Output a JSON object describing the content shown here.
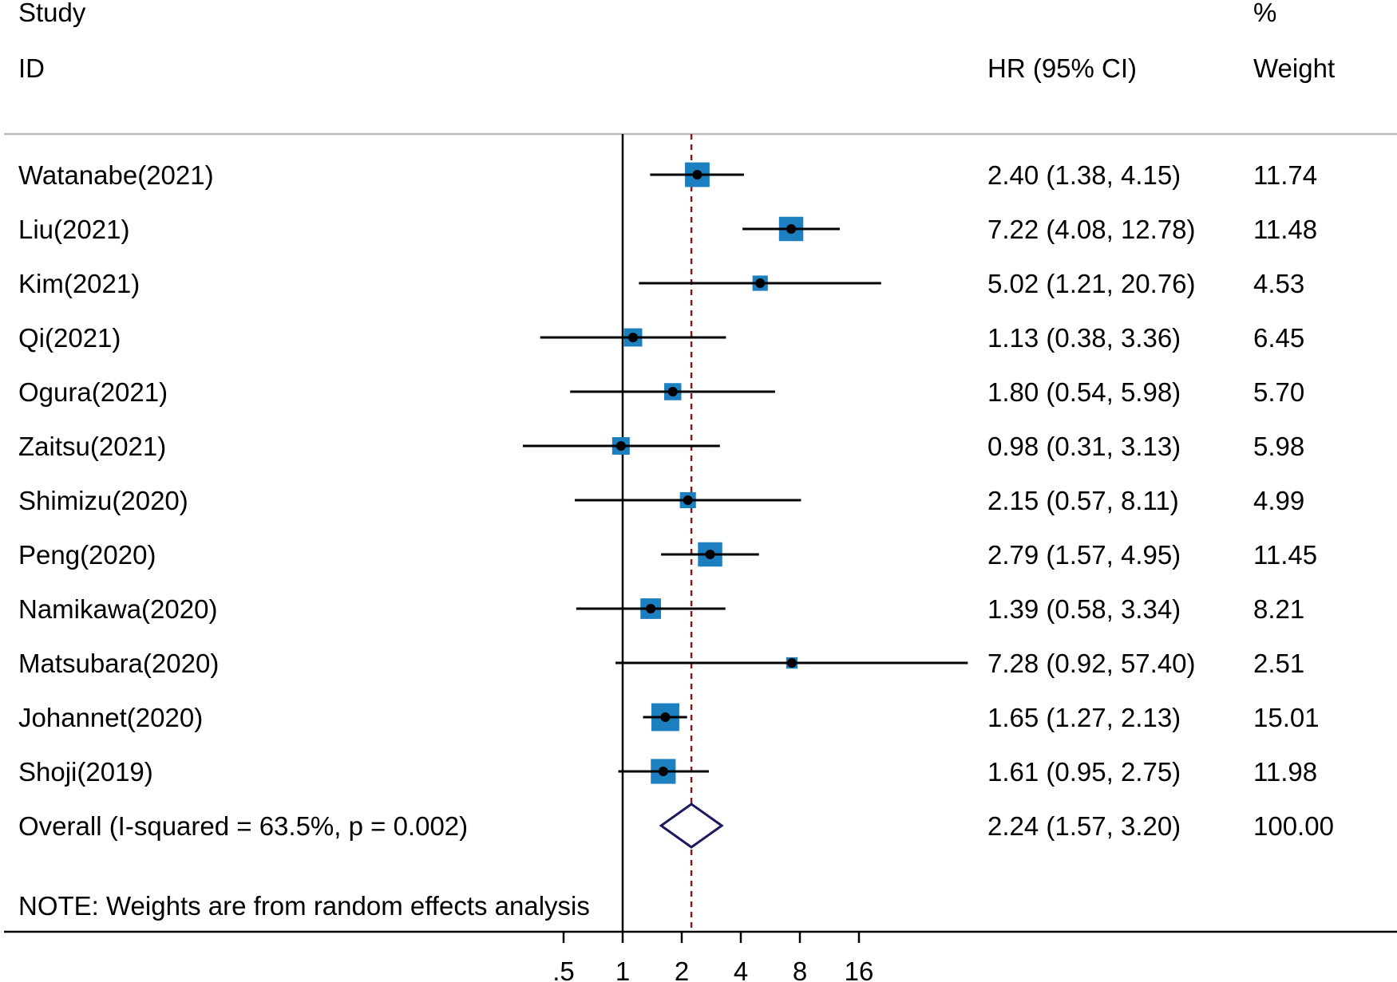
{
  "chart_data": {
    "type": "forest",
    "headers": {
      "study_line1": "Study",
      "study_line2": "ID",
      "effect": "HR (95% CI)",
      "weight_line1": "%",
      "weight_line2": "Weight"
    },
    "studies": [
      {
        "id": "Watanabe(2021)",
        "hr": 2.4,
        "lower": 1.38,
        "upper": 4.15,
        "ci_text": "2.40 (1.38, 4.15)",
        "weight": 11.74,
        "weight_text": "11.74"
      },
      {
        "id": "Liu(2021)",
        "hr": 7.22,
        "lower": 4.08,
        "upper": 12.78,
        "ci_text": "7.22 (4.08, 12.78)",
        "weight": 11.48,
        "weight_text": "11.48"
      },
      {
        "id": "Kim(2021)",
        "hr": 5.02,
        "lower": 1.21,
        "upper": 20.76,
        "ci_text": "5.02 (1.21, 20.76)",
        "weight": 4.53,
        "weight_text": "4.53"
      },
      {
        "id": "Qi(2021)",
        "hr": 1.13,
        "lower": 0.38,
        "upper": 3.36,
        "ci_text": "1.13 (0.38, 3.36)",
        "weight": 6.45,
        "weight_text": "6.45"
      },
      {
        "id": "Ogura(2021)",
        "hr": 1.8,
        "lower": 0.54,
        "upper": 5.98,
        "ci_text": "1.80 (0.54, 5.98)",
        "weight": 5.7,
        "weight_text": "5.70"
      },
      {
        "id": "Zaitsu(2021)",
        "hr": 0.98,
        "lower": 0.31,
        "upper": 3.13,
        "ci_text": "0.98 (0.31, 3.13)",
        "weight": 5.98,
        "weight_text": "5.98"
      },
      {
        "id": "Shimizu(2020)",
        "hr": 2.15,
        "lower": 0.57,
        "upper": 8.11,
        "ci_text": "2.15 (0.57, 8.11)",
        "weight": 4.99,
        "weight_text": "4.99"
      },
      {
        "id": "Peng(2020)",
        "hr": 2.79,
        "lower": 1.57,
        "upper": 4.95,
        "ci_text": "2.79 (1.57, 4.95)",
        "weight": 11.45,
        "weight_text": "11.45"
      },
      {
        "id": "Namikawa(2020)",
        "hr": 1.39,
        "lower": 0.58,
        "upper": 3.34,
        "ci_text": "1.39 (0.58, 3.34)",
        "weight": 8.21,
        "weight_text": "8.21"
      },
      {
        "id": "Matsubara(2020)",
        "hr": 7.28,
        "lower": 0.92,
        "upper": 57.4,
        "ci_text": "7.28 (0.92, 57.40)",
        "weight": 2.51,
        "weight_text": "2.51",
        "truncated_upper": true
      },
      {
        "id": "Johannet(2020)",
        "hr": 1.65,
        "lower": 1.27,
        "upper": 2.13,
        "ci_text": "1.65 (1.27, 2.13)",
        "weight": 15.01,
        "weight_text": "15.01"
      },
      {
        "id": "Shoji(2019)",
        "hr": 1.61,
        "lower": 0.95,
        "upper": 2.75,
        "ci_text": "1.61 (0.95, 2.75)",
        "weight": 11.98,
        "weight_text": "11.98"
      }
    ],
    "overall": {
      "label": "Overall  (I-squared = 63.5%, p = 0.002)",
      "hr": 2.24,
      "lower": 1.57,
      "upper": 3.2,
      "ci_text": "2.24 (1.57, 3.20)",
      "weight_text": "100.00"
    },
    "note": "NOTE: Weights are from random effects analysis",
    "x_axis": {
      "scale": "log",
      "domain": [
        0.5,
        16
      ],
      "ticks": [
        0.5,
        1,
        2,
        4,
        8,
        16
      ],
      "tick_labels": [
        ".5",
        "1",
        "2",
        "4",
        "8",
        "16"
      ],
      "null_line": 1
    },
    "colors": {
      "box": "#1c7fc0",
      "ci_line": "#000000",
      "overall_line": "#8b1a1a",
      "diamond": "#1b1a5e",
      "separator": "#bdbdbd"
    }
  }
}
